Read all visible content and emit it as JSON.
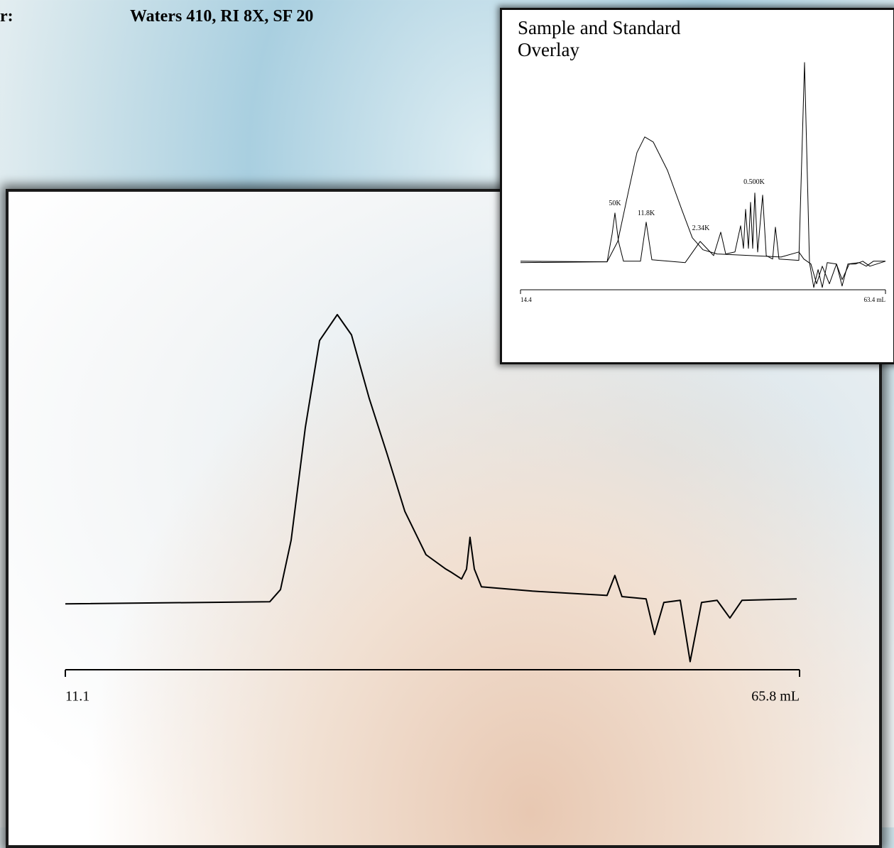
{
  "header": {
    "label": "r:",
    "value": "Waters 410, RI 8X, SF 20"
  },
  "chart_data": [
    {
      "type": "line",
      "xlim": [
        11.1,
        65.8
      ],
      "xticks": [
        11.1,
        {
          "value": 65.8,
          "label": "65.8 mL"
        }
      ],
      "ylim": [
        -25,
        100
      ],
      "series": [
        {
          "color": "#000000",
          "x": [
            11.1,
            26.33,
            27.13,
            27.92,
            28.98,
            30.04,
            31.36,
            32.42,
            33.74,
            35.06,
            36.39,
            37.97,
            39.45,
            39.82,
            40.62,
            40.99,
            41.25,
            41.57,
            42.1,
            45.9,
            51.46,
            52.04,
            52.57,
            54.37,
            55.0,
            55.69,
            56.91,
            57.65,
            58.5,
            59.66,
            60.61,
            61.51,
            65.59
          ],
          "values": [
            0,
            0.7,
            4.9,
            22,
            61,
            91,
            100,
            93,
            71,
            52,
            32,
            17,
            12,
            11,
            8.6,
            12,
            23,
            12,
            5.9,
            4.4,
            2.9,
            9.8,
            2.5,
            1.7,
            -10.6,
            0.5,
            1.2,
            -20,
            0.5,
            1.2,
            -4.9,
            1.2,
            1.7
          ]
        }
      ]
    },
    {
      "type": "line",
      "title": "Sample and Standard Overlay",
      "xlim": [
        14.4,
        63.4
      ],
      "xticks": [
        14.4,
        {
          "value": 63.4,
          "label": "63.4 mL"
        }
      ],
      "ylim": [
        -15,
        100
      ],
      "annotations": [
        "50K",
        "11.8K",
        "2.34K",
        "0.500K"
      ],
      "series": [
        {
          "color": "#000000",
          "x": [
            14.4,
            26.03,
            26.7,
            27.08,
            27.56,
            28.22,
            30.51,
            31.27,
            32.04,
            36.52,
            38.52,
            40.33,
            41.28,
            41.95,
            43.19,
            43.95,
            44.33,
            44.62,
            45.0,
            45.29,
            45.57,
            45.86,
            46.24,
            46.91,
            47.39,
            48.25,
            48.62,
            49.1,
            51.77,
            52.53,
            53.2,
            53.77,
            54.35,
            54.92,
            55.58,
            56.82,
            57.58,
            58.35,
            59.87,
            60.83,
            61.78,
            63.4
          ],
          "values": [
            0,
            0.4,
            14.2,
            24.8,
            10.6,
            0.7,
            0.7,
            20.2,
            1.4,
            0,
            10.6,
            3.5,
            15.2,
            4.3,
            5.3,
            18.4,
            7.1,
            26.6,
            7.1,
            30.1,
            7.1,
            34.8,
            5.3,
            33.7,
            3.5,
            1.8,
            17.7,
            1.8,
            1.1,
            100,
            0,
            -12.4,
            -3.5,
            -12.4,
            0,
            -0.7,
            -11.7,
            -0.7,
            0,
            -1.8,
            0.7,
            0.7
          ]
        },
        {
          "color": "#000000",
          "x": [
            14.4,
            26.03,
            27.46,
            28.89,
            30.03,
            31.08,
            32.22,
            34.13,
            36.04,
            37.47,
            38.9,
            40.81,
            49.39,
            51.77,
            52.44,
            53.39,
            54.15,
            54.92,
            55.87,
            56.82,
            57.58,
            58.54,
            59.4,
            60.35,
            61.3,
            63.4
          ],
          "values": [
            0.7,
            0.4,
            10.6,
            35.5,
            55,
            62.8,
            60.3,
            46.1,
            26.6,
            12.4,
            6.4,
            4.3,
            2.8,
            5.3,
            1.8,
            -0.7,
            -10.6,
            -1.8,
            -10.6,
            -0.7,
            -8.5,
            -0.7,
            -0.7,
            0.7,
            -1.8,
            0.7
          ]
        }
      ]
    }
  ]
}
